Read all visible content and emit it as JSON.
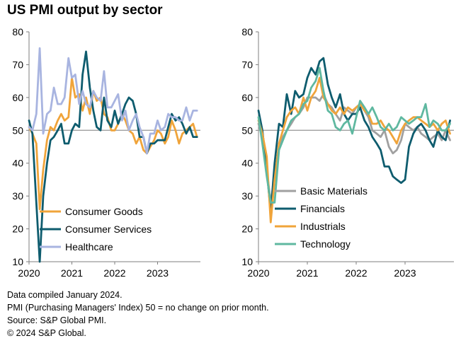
{
  "title": "US PMI output by sector",
  "chart_data": [
    {
      "type": "line",
      "title": "",
      "ylim": [
        10,
        80
      ],
      "yticks": [
        10,
        20,
        30,
        40,
        50,
        60,
        70,
        80
      ],
      "xlim": [
        2020.0,
        2024.0
      ],
      "xticks": [
        "2020",
        "2021",
        "2022",
        "2023"
      ],
      "reference_line": 50,
      "grid": false,
      "legend_position": "bottom-left",
      "series": [
        {
          "name": "Consumer Goods",
          "color": "#F0A43A",
          "x": [
            2020.0,
            2020.08,
            2020.17,
            2020.25,
            2020.33,
            2020.42,
            2020.5,
            2020.58,
            2020.67,
            2020.75,
            2020.83,
            2020.92,
            2021.0,
            2021.08,
            2021.17,
            2021.25,
            2021.33,
            2021.42,
            2021.5,
            2021.58,
            2021.67,
            2021.75,
            2021.83,
            2021.92,
            2022.0,
            2022.08,
            2022.17,
            2022.25,
            2022.33,
            2022.42,
            2022.5,
            2022.58,
            2022.67,
            2022.75,
            2022.83,
            2022.92,
            2023.0,
            2023.08,
            2023.17,
            2023.25,
            2023.33,
            2023.42,
            2023.5,
            2023.58,
            2023.67,
            2023.75,
            2023.83,
            2023.92
          ],
          "values": [
            51,
            49,
            46,
            26,
            38,
            47,
            51,
            50,
            53,
            55,
            53,
            54,
            66,
            60,
            61,
            56,
            60,
            55,
            62,
            59,
            60,
            55,
            54,
            50,
            50,
            52,
            55,
            53,
            50,
            49,
            46,
            48,
            44,
            43,
            45,
            47,
            50,
            49,
            46,
            48,
            53,
            50,
            46,
            49,
            50,
            51,
            52,
            48
          ]
        },
        {
          "name": "Consumer Services",
          "color": "#0E5C6E",
          "x": [
            2020.0,
            2020.08,
            2020.17,
            2020.25,
            2020.33,
            2020.42,
            2020.5,
            2020.58,
            2020.67,
            2020.75,
            2020.83,
            2020.92,
            2021.0,
            2021.08,
            2021.17,
            2021.25,
            2021.33,
            2021.42,
            2021.5,
            2021.58,
            2021.67,
            2021.75,
            2021.83,
            2021.92,
            2022.0,
            2022.08,
            2022.17,
            2022.25,
            2022.33,
            2022.42,
            2022.5,
            2022.58,
            2022.67,
            2022.75,
            2022.83,
            2022.92,
            2023.0,
            2023.08,
            2023.17,
            2023.25,
            2023.33,
            2023.42,
            2023.5,
            2023.58,
            2023.67,
            2023.75,
            2023.83,
            2023.92
          ],
          "values": [
            53,
            49,
            28,
            10,
            30,
            40,
            47,
            48,
            50,
            52,
            46,
            46,
            50,
            52,
            51,
            67,
            74,
            63,
            56,
            51,
            50,
            60,
            53,
            51,
            56,
            52,
            55,
            58,
            60,
            59,
            55,
            48,
            48,
            43,
            46,
            46,
            47,
            47,
            47,
            51,
            55,
            53,
            54,
            52,
            49,
            51,
            48,
            48
          ]
        },
        {
          "name": "Healthcare",
          "color": "#A8B4E0",
          "x": [
            2020.0,
            2020.08,
            2020.17,
            2020.25,
            2020.33,
            2020.42,
            2020.5,
            2020.58,
            2020.67,
            2020.75,
            2020.83,
            2020.92,
            2021.0,
            2021.08,
            2021.17,
            2021.25,
            2021.33,
            2021.42,
            2021.5,
            2021.58,
            2021.67,
            2021.75,
            2021.83,
            2021.92,
            2022.0,
            2022.08,
            2022.17,
            2022.25,
            2022.33,
            2022.42,
            2022.5,
            2022.58,
            2022.67,
            2022.75,
            2022.83,
            2022.92,
            2023.0,
            2023.08,
            2023.17,
            2023.25,
            2023.33,
            2023.42,
            2023.5,
            2023.58,
            2023.67,
            2023.75,
            2023.83,
            2023.92
          ],
          "values": [
            51,
            50,
            55,
            75,
            49,
            55,
            56,
            63,
            58,
            58,
            60,
            72,
            66,
            67,
            58,
            62,
            58,
            57,
            62,
            60,
            59,
            68,
            57,
            57,
            59,
            61,
            53,
            56,
            50,
            53,
            55,
            51,
            48,
            43,
            49,
            49,
            53,
            50,
            51,
            55,
            54,
            54,
            53,
            53,
            57,
            53,
            56,
            56
          ]
        }
      ]
    },
    {
      "type": "line",
      "title": "",
      "ylim": [
        10,
        80
      ],
      "yticks": [
        10,
        20,
        30,
        40,
        50,
        60,
        70,
        80
      ],
      "xlim": [
        2020.0,
        2024.0
      ],
      "xticks": [
        "2020",
        "2021",
        "2022",
        "2023"
      ],
      "reference_line": 50,
      "grid": false,
      "legend_position": "bottom-left",
      "series": [
        {
          "name": "Basic Materials",
          "color": "#A0A0A0",
          "x": [
            2020.0,
            2020.08,
            2020.17,
            2020.25,
            2020.33,
            2020.42,
            2020.5,
            2020.58,
            2020.67,
            2020.75,
            2020.83,
            2020.92,
            2021.0,
            2021.08,
            2021.17,
            2021.25,
            2021.33,
            2021.42,
            2021.5,
            2021.58,
            2021.67,
            2021.75,
            2021.83,
            2021.92,
            2022.0,
            2022.08,
            2022.17,
            2022.25,
            2022.33,
            2022.42,
            2022.5,
            2022.58,
            2022.67,
            2022.75,
            2022.83,
            2022.92,
            2023.0,
            2023.08,
            2023.17,
            2023.25,
            2023.33,
            2023.42,
            2023.5,
            2023.58,
            2023.67,
            2023.75,
            2023.83,
            2023.92
          ],
          "values": [
            52,
            48,
            38,
            28,
            36,
            45,
            48,
            50,
            52,
            54,
            55,
            57,
            60,
            60,
            60,
            59,
            61,
            58,
            57,
            55,
            53,
            57,
            56,
            55,
            57,
            58,
            56,
            54,
            50,
            49,
            48,
            50,
            45,
            43,
            44,
            47,
            52,
            51,
            50,
            51,
            49,
            48,
            47,
            48,
            49,
            47,
            50,
            47
          ]
        },
        {
          "name": "Financials",
          "color": "#0E5C6E",
          "x": [
            2020.0,
            2020.08,
            2020.17,
            2020.25,
            2020.33,
            2020.42,
            2020.5,
            2020.58,
            2020.67,
            2020.75,
            2020.83,
            2020.92,
            2021.0,
            2021.08,
            2021.17,
            2021.25,
            2021.33,
            2021.42,
            2021.5,
            2021.58,
            2021.67,
            2021.75,
            2021.83,
            2021.92,
            2022.0,
            2022.08,
            2022.17,
            2022.25,
            2022.33,
            2022.42,
            2022.5,
            2022.58,
            2022.67,
            2022.75,
            2022.83,
            2022.92,
            2023.0,
            2023.08,
            2023.17,
            2023.25,
            2023.33,
            2023.42,
            2023.5,
            2023.58,
            2023.67,
            2023.75,
            2023.83,
            2023.92
          ],
          "values": [
            56,
            50,
            38,
            25,
            40,
            52,
            51,
            61,
            55,
            62,
            60,
            61,
            66,
            69,
            67,
            71,
            72,
            64,
            60,
            57,
            61,
            55,
            53,
            55,
            55,
            57,
            53,
            51,
            48,
            46,
            44,
            39,
            39,
            36,
            35,
            34,
            35,
            45,
            49,
            51,
            52,
            50,
            47,
            45,
            50,
            48,
            47,
            53
          ]
        },
        {
          "name": "Industrials",
          "color": "#F0A43A",
          "x": [
            2020.0,
            2020.08,
            2020.17,
            2020.25,
            2020.33,
            2020.42,
            2020.5,
            2020.58,
            2020.67,
            2020.75,
            2020.83,
            2020.92,
            2021.0,
            2021.08,
            2021.17,
            2021.25,
            2021.33,
            2021.42,
            2021.5,
            2021.58,
            2021.67,
            2021.75,
            2021.83,
            2021.92,
            2022.0,
            2022.08,
            2022.17,
            2022.25,
            2022.33,
            2022.42,
            2022.5,
            2022.58,
            2022.67,
            2022.75,
            2022.83,
            2022.92,
            2023.0,
            2023.08,
            2023.17,
            2023.25,
            2023.33,
            2023.42,
            2023.5,
            2023.58,
            2023.67,
            2023.75,
            2023.83,
            2023.92
          ],
          "values": [
            53,
            49,
            42,
            22,
            35,
            46,
            50,
            54,
            56,
            57,
            55,
            60,
            56,
            60,
            62,
            66,
            60,
            58,
            56,
            55,
            57,
            55,
            57,
            56,
            57,
            58,
            56,
            55,
            52,
            52,
            53,
            51,
            50,
            48,
            46,
            50,
            52,
            53,
            54,
            54,
            53,
            52,
            51,
            52,
            50,
            52,
            53,
            49
          ]
        },
        {
          "name": "Technology",
          "color": "#5FB8A0",
          "x": [
            2020.0,
            2020.08,
            2020.17,
            2020.25,
            2020.33,
            2020.42,
            2020.5,
            2020.58,
            2020.67,
            2020.75,
            2020.83,
            2020.92,
            2021.0,
            2021.08,
            2021.17,
            2021.25,
            2021.33,
            2021.42,
            2021.5,
            2021.58,
            2021.67,
            2021.75,
            2021.83,
            2021.92,
            2022.0,
            2022.08,
            2022.17,
            2022.25,
            2022.33,
            2022.42,
            2022.5,
            2022.58,
            2022.67,
            2022.75,
            2022.83,
            2022.92,
            2023.0,
            2023.08,
            2023.17,
            2023.25,
            2023.33,
            2023.42,
            2023.5,
            2023.58,
            2023.67,
            2023.75,
            2023.83,
            2023.92
          ],
          "values": [
            54,
            46,
            36,
            28,
            28,
            44,
            47,
            50,
            53,
            54,
            55,
            58,
            59,
            63,
            65,
            69,
            62,
            56,
            55,
            51,
            50,
            52,
            53,
            49,
            54,
            59,
            57,
            55,
            57,
            54,
            51,
            50,
            52,
            50,
            51,
            54,
            53,
            52,
            53,
            54,
            54,
            58,
            51,
            53,
            52,
            50,
            50,
            52
          ]
        }
      ]
    }
  ],
  "footnotes": [
    "Data compiled January 2024.",
    "PMI (Purchasing Managers' Index) 50 =  no change on prior month.",
    "Source: S&P Global PMI.",
    "© 2024 S&P Global."
  ]
}
